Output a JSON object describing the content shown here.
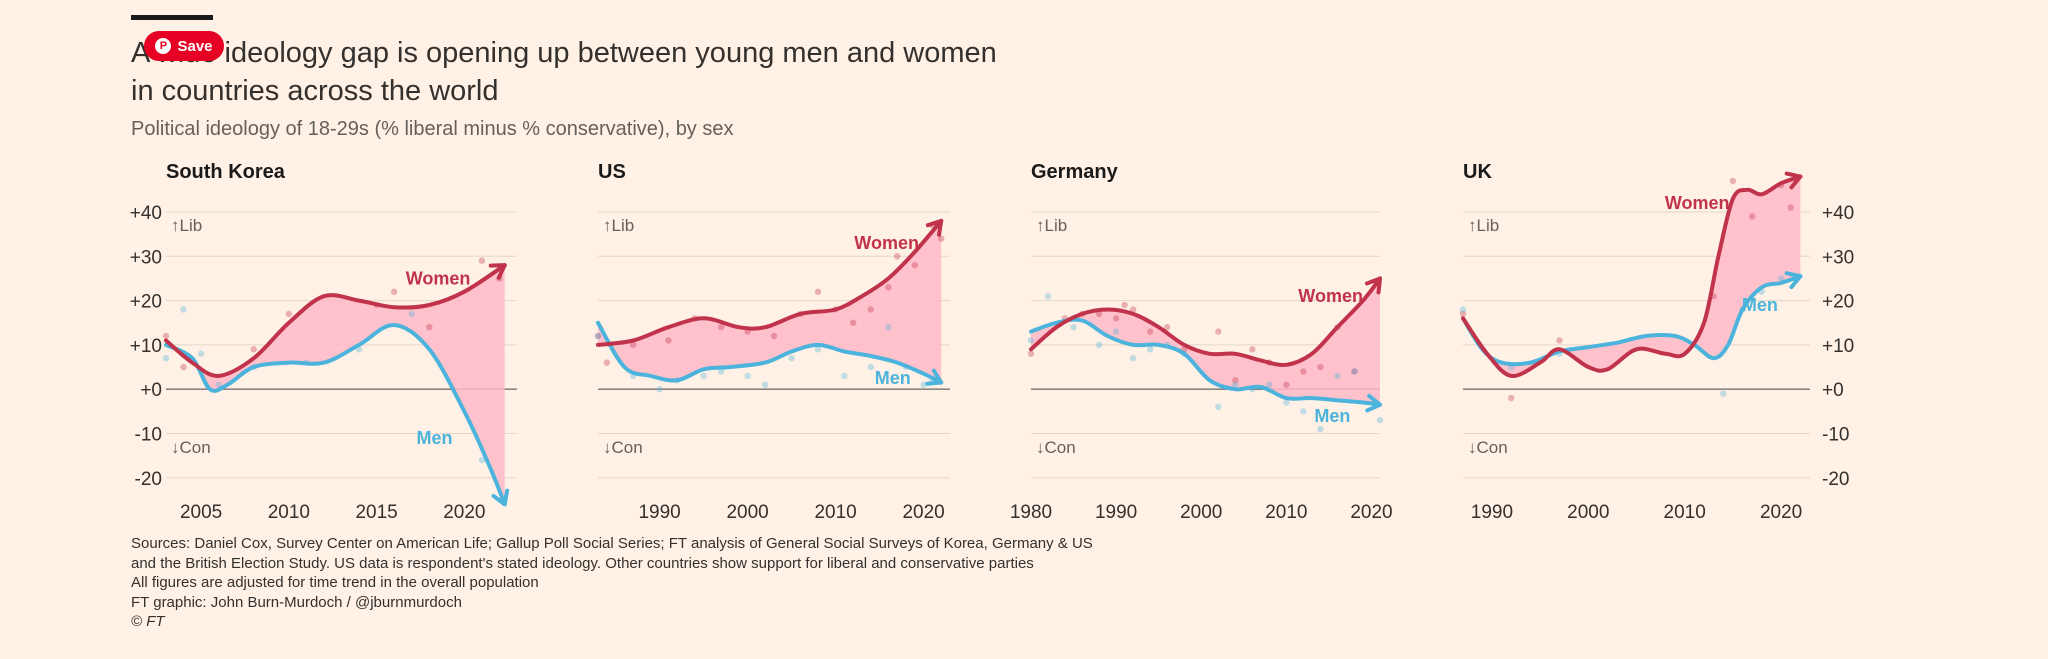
{
  "header": {
    "title_line1": "A wide ideology gap is opening up between young men and women",
    "title_line2": "in countries across the world",
    "subtitle": "Political ideology of 18-29s (% liberal minus % conservative), by sex",
    "save_label": "Save",
    "pinterest_icon": "pinterest-icon"
  },
  "colors": {
    "background": "#fff1e5",
    "women": "#c0334a",
    "men": "#4bb3dc",
    "gap_fill": "#ffb8c8",
    "zero_line": "#8a8580",
    "grid": "#e3d7cc",
    "text": "#33302e",
    "muted": "#66605c"
  },
  "footer": {
    "sources_line1": "Sources: Daniel Cox, Survey Center on American Life; Gallup Poll Social Series; FT analysis of General Social Surveys of Korea, Germany & US",
    "sources_line2": "and the British Election Study. US data is respondent's stated ideology. Other countries show support for liberal and conservative parties",
    "note": "All figures are adjusted for time trend in the overall population",
    "credit": "FT graphic: John Burn-Murdoch / @jburnmurdoch",
    "copyright": "© FT"
  },
  "chart_data": [
    {
      "type": "line",
      "title": "South Korea",
      "ylim": [
        -25,
        45
      ],
      "yticks": [
        40,
        30,
        20,
        10,
        0,
        -10,
        -20
      ],
      "ytick_labels": [
        "+40",
        "+30",
        "+20",
        "+10",
        "+0",
        "-10",
        "-20"
      ],
      "ytick_side": "left",
      "xlim": [
        2003,
        2023
      ],
      "xticks": [
        2005,
        2010,
        2015,
        2020
      ],
      "axis_notes": {
        "top": "↑Lib",
        "bottom": "↓Con"
      },
      "grid": true,
      "fill_between": true,
      "series": [
        {
          "name": "Women",
          "x": [
            2003,
            2004.5,
            2006,
            2008,
            2010,
            2012,
            2014,
            2016,
            2018,
            2020,
            2022.3
          ],
          "values": [
            11,
            6,
            3,
            7,
            15,
            21,
            20,
            18.5,
            19,
            22,
            28
          ]
        },
        {
          "name": "Men",
          "x": [
            2003,
            2004.5,
            2005.5,
            2006.5,
            2008,
            2010,
            2012,
            2014,
            2016,
            2018,
            2020,
            2021.5,
            2022.3
          ],
          "values": [
            10,
            7,
            0,
            1,
            5,
            6,
            6,
            10,
            14.5,
            9,
            -5,
            -18,
            -26
          ]
        }
      ],
      "scatter": [
        {
          "series": "Women",
          "x": [
            2003,
            2004,
            2008,
            2010,
            2015,
            2016,
            2018,
            2021,
            2022
          ],
          "values": [
            12,
            5,
            9,
            17,
            19,
            22,
            14,
            29,
            25
          ]
        },
        {
          "series": "Men",
          "x": [
            2003,
            2004,
            2005,
            2006,
            2008,
            2011,
            2014,
            2017,
            2021
          ],
          "values": [
            7,
            18,
            8,
            1,
            5,
            6,
            9,
            17,
            -16
          ]
        }
      ],
      "labels": {
        "Women": {
          "x": 2018.5,
          "y": 25
        },
        "Men": {
          "x": 2018.3,
          "y": -11
        }
      }
    },
    {
      "type": "line",
      "title": "US",
      "ylim": [
        -25,
        45
      ],
      "xlim": [
        1983,
        2023
      ],
      "xticks": [
        1990,
        2000,
        2010,
        2020
      ],
      "axis_notes": {
        "top": "↑Lib",
        "bottom": "↓Con"
      },
      "grid": true,
      "fill_between": true,
      "series": [
        {
          "name": "Women",
          "x": [
            1983,
            1987,
            1991,
            1995,
            1999,
            2002,
            2006,
            2010,
            2013,
            2016,
            2019,
            2022
          ],
          "values": [
            10,
            11,
            14,
            16,
            14,
            14,
            17,
            18,
            21,
            25,
            31,
            38
          ]
        },
        {
          "name": "Men",
          "x": [
            1983,
            1986,
            1989,
            1992,
            1995,
            1998,
            2002,
            2005,
            2008,
            2011,
            2014,
            2017,
            2020,
            2022
          ],
          "values": [
            15,
            5,
            3,
            2,
            4.5,
            5,
            6,
            8.5,
            10,
            8.5,
            7.5,
            6,
            3.5,
            1.5
          ]
        }
      ],
      "scatter": [
        {
          "series": "Women",
          "x": [
            1983,
            1984,
            1987,
            1991,
            1994,
            1997,
            2000,
            2003,
            2006,
            2008,
            2010,
            2012,
            2014,
            2016,
            2017,
            2019,
            2021,
            2022
          ],
          "values": [
            12,
            6,
            10,
            11,
            16,
            14,
            13,
            12,
            17,
            22,
            18,
            15,
            18,
            23,
            30,
            28,
            37,
            34
          ]
        },
        {
          "series": "Men",
          "x": [
            1983,
            1987,
            1990,
            1992,
            1995,
            1997,
            2000,
            2002,
            2005,
            2008,
            2011,
            2014,
            2016,
            2018,
            2020,
            2021
          ],
          "values": [
            12,
            3,
            0,
            2,
            3,
            4,
            3,
            1,
            7,
            9,
            3,
            5,
            14,
            5,
            1,
            2
          ]
        }
      ],
      "labels": {
        "Women": {
          "x": 2015.8,
          "y": 33
        },
        "Men": {
          "x": 2016.5,
          "y": 2.5
        }
      }
    },
    {
      "type": "line",
      "title": "Germany",
      "ylim": [
        -25,
        45
      ],
      "xlim": [
        1980,
        2021
      ],
      "xticks": [
        1980,
        1990,
        2000,
        2010,
        2020
      ],
      "axis_notes": {
        "top": "↑Lib",
        "bottom": "↓Con"
      },
      "grid": true,
      "fill_between": true,
      "series": [
        {
          "name": "Women",
          "x": [
            1980,
            1983,
            1986,
            1989,
            1992,
            1995,
            1998,
            2001,
            2004,
            2007,
            2010,
            2013,
            2016,
            2019,
            2021
          ],
          "values": [
            9,
            14,
            17,
            18,
            17,
            14,
            10,
            8,
            8,
            6.5,
            5.5,
            8,
            14,
            20,
            25
          ]
        },
        {
          "name": "Men",
          "x": [
            1980,
            1983,
            1986,
            1989,
            1992,
            1995,
            1998,
            2001,
            2004,
            2007,
            2010,
            2013,
            2016,
            2019,
            2021
          ],
          "values": [
            13,
            15,
            15.5,
            12,
            10,
            10,
            8,
            2,
            0,
            0.5,
            -2,
            -2,
            -2.5,
            -3,
            -3.5
          ]
        }
      ],
      "scatter": [
        {
          "series": "Women",
          "x": [
            1980,
            1984,
            1986,
            1988,
            1990,
            1991,
            1992,
            1994,
            1996,
            1998,
            2002,
            2004,
            2006,
            2008,
            2010,
            2012,
            2014,
            2016,
            2018
          ],
          "values": [
            8,
            16,
            17,
            17,
            16,
            19,
            18,
            13,
            14,
            9,
            13,
            2,
            9,
            6,
            1,
            4,
            5,
            14,
            4
          ]
        },
        {
          "series": "Men",
          "x": [
            1980,
            1982,
            1985,
            1988,
            1990,
            1992,
            1994,
            1996,
            1998,
            2002,
            2004,
            2006,
            2008,
            2010,
            2012,
            2014,
            2016,
            2018,
            2021
          ],
          "values": [
            11,
            21,
            14,
            10,
            13,
            7,
            9,
            10,
            8,
            -4,
            1,
            0,
            1,
            -3,
            -5,
            -9,
            3,
            4,
            -7
          ]
        }
      ],
      "labels": {
        "Women": {
          "x": 2015.2,
          "y": 21
        },
        "Men": {
          "x": 2015.4,
          "y": -6
        }
      }
    },
    {
      "type": "line",
      "title": "UK",
      "ylim": [
        -25,
        45
      ],
      "yticks": [
        40,
        30,
        20,
        10,
        0,
        -10,
        -20
      ],
      "ytick_labels": [
        "+40",
        "+30",
        "+20",
        "+10",
        "+0",
        "-10",
        "-20"
      ],
      "ytick_side": "right",
      "xlim": [
        1987,
        2023
      ],
      "xticks": [
        1990,
        2000,
        2010,
        2020
      ],
      "axis_notes": {
        "top": "↑Lib",
        "bottom": "↓Con"
      },
      "grid": true,
      "fill_between": true,
      "series": [
        {
          "name": "Women",
          "x": [
            1987,
            1989.5,
            1992,
            1995,
            1997,
            2000,
            2002,
            2005,
            2008,
            2010,
            2012,
            2013.5,
            2015,
            2016.5,
            2018,
            2020,
            2022
          ],
          "values": [
            16,
            8,
            3,
            6,
            9,
            5,
            4.5,
            9,
            8,
            8,
            15,
            30,
            43,
            45,
            44,
            46.5,
            48
          ]
        },
        {
          "name": "Men",
          "x": [
            1987,
            1989,
            1991,
            1994,
            1997,
            2000,
            2003,
            2006,
            2009,
            2011,
            2013,
            2014.5,
            2016,
            2018,
            2020,
            2022
          ],
          "values": [
            16,
            9,
            6,
            6,
            8.5,
            9.5,
            10.5,
            12,
            12,
            10,
            7,
            10,
            18,
            23,
            24,
            25.5
          ]
        }
      ],
      "scatter": [
        {
          "series": "Women",
          "x": [
            1987,
            1992,
            1997,
            2013,
            2015,
            2017,
            2020,
            2021
          ],
          "values": [
            17,
            -2,
            11,
            21,
            47,
            39,
            46,
            41
          ]
        },
        {
          "series": "Men",
          "x": [
            1987,
            1992,
            1997,
            2014,
            2016,
            2018,
            2020
          ],
          "values": [
            18,
            5,
            8,
            -1,
            18,
            22,
            25
          ]
        }
      ],
      "labels": {
        "Women": {
          "x": 2011.3,
          "y": 42
        },
        "Men": {
          "x": 2017.8,
          "y": 19
        }
      }
    }
  ]
}
